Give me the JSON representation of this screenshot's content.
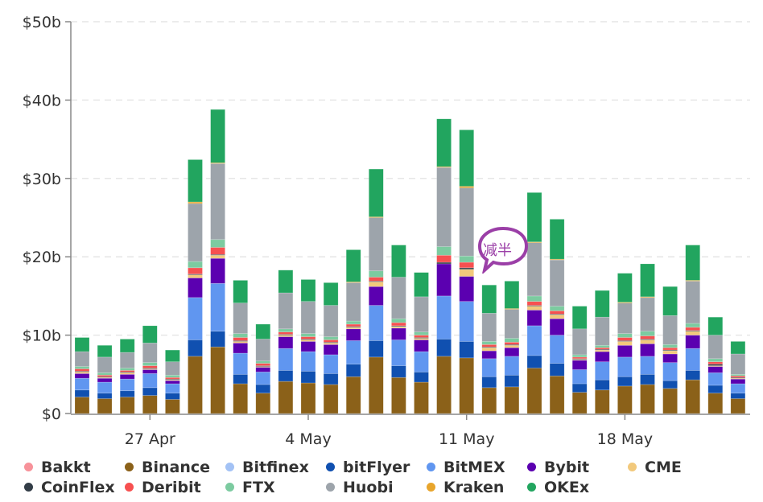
{
  "chart_data": {
    "type": "bar",
    "stacked": true,
    "title": "",
    "xlabel": "",
    "ylabel": "",
    "ylim": [
      0,
      50
    ],
    "yticks": [
      "$0",
      "$10b",
      "$20b",
      "$30b",
      "$40b",
      "$50b"
    ],
    "ytick_values": [
      0,
      10,
      20,
      30,
      40,
      50
    ],
    "xtick_labels": [
      "27 Apr",
      "4 May",
      "11 May",
      "18 May"
    ],
    "xtick_indices": [
      3,
      10,
      17,
      24
    ],
    "grid": true,
    "legend_position": "bottom",
    "categories": [
      "24 Apr",
      "25 Apr",
      "26 Apr",
      "27 Apr",
      "28 Apr",
      "29 Apr",
      "30 Apr",
      "1 May",
      "2 May",
      "3 May",
      "4 May",
      "5 May",
      "6 May",
      "7 May",
      "8 May",
      "9 May",
      "10 May",
      "11 May",
      "12 May",
      "13 May",
      "14 May",
      "15 May",
      "16 May",
      "17 May",
      "18 May",
      "19 May",
      "20 May",
      "21 May",
      "22 May",
      "23 May"
    ],
    "series": [
      {
        "name": "Binance",
        "color": "#8b6119",
        "values": [
          2.1,
          1.9,
          2.1,
          2.3,
          1.8,
          7.3,
          8.5,
          3.8,
          2.6,
          4.1,
          3.9,
          3.7,
          4.7,
          7.2,
          4.6,
          4.0,
          7.3,
          7.1,
          3.3,
          3.4,
          5.8,
          4.8,
          2.7,
          3.0,
          3.5,
          3.7,
          3.2,
          4.3,
          2.6,
          1.9
        ]
      },
      {
        "name": "bitFlyer",
        "color": "#1050b0",
        "values": [
          0.9,
          0.7,
          0.8,
          1.0,
          0.8,
          2.1,
          2.0,
          1.2,
          1.1,
          1.4,
          1.5,
          1.4,
          1.6,
          2.1,
          1.5,
          1.3,
          2.2,
          2.1,
          1.4,
          1.5,
          1.6,
          1.6,
          1.1,
          1.3,
          1.2,
          1.3,
          1.0,
          1.2,
          1.0,
          0.7
        ]
      },
      {
        "name": "BitMEX",
        "color": "#6096f0",
        "values": [
          1.5,
          1.4,
          1.5,
          1.8,
          1.2,
          5.4,
          6.1,
          2.7,
          1.6,
          2.8,
          2.5,
          2.4,
          3.0,
          4.5,
          3.3,
          2.6,
          5.5,
          5.1,
          2.3,
          2.4,
          3.8,
          3.6,
          1.8,
          2.3,
          2.5,
          2.3,
          2.3,
          2.8,
          1.6,
          1.2
        ]
      },
      {
        "name": "Bybit",
        "color": "#5b00b0",
        "values": [
          0.6,
          0.5,
          0.6,
          0.5,
          0.4,
          2.5,
          3.2,
          1.3,
          0.6,
          1.5,
          1.3,
          1.3,
          1.5,
          2.4,
          1.5,
          1.5,
          4.1,
          3.2,
          1.0,
          1.1,
          2.0,
          2.1,
          1.2,
          1.3,
          1.5,
          1.6,
          1.1,
          1.7,
          0.8,
          0.6
        ]
      },
      {
        "name": "CME",
        "color": "#f2c97c",
        "values": [
          0.2,
          0.1,
          0.2,
          0.1,
          0.1,
          0.4,
          0.4,
          0.2,
          0.1,
          0.2,
          0.2,
          0.2,
          0.2,
          0.6,
          0.2,
          0.2,
          0.0,
          0.9,
          0.4,
          0.3,
          0.5,
          0.5,
          0.1,
          0.2,
          0.5,
          0.5,
          0.4,
          0.5,
          0.1,
          0.1
        ]
      },
      {
        "name": "CoinFlex",
        "color": "#333d47",
        "values": [
          0.1,
          0.1,
          0.1,
          0.1,
          0.1,
          0.1,
          0.1,
          0.1,
          0.1,
          0.1,
          0.1,
          0.1,
          0.1,
          0.1,
          0.1,
          0.1,
          0.2,
          0.2,
          0.1,
          0.1,
          0.1,
          0.1,
          0.1,
          0.1,
          0.1,
          0.1,
          0.1,
          0.1,
          0.2,
          0.1
        ]
      },
      {
        "name": "Deribit",
        "color": "#f75050",
        "values": [
          0.3,
          0.2,
          0.2,
          0.3,
          0.2,
          0.8,
          0.9,
          0.4,
          0.3,
          0.3,
          0.3,
          0.3,
          0.3,
          0.5,
          0.4,
          0.3,
          0.9,
          0.7,
          0.3,
          0.3,
          0.5,
          0.4,
          0.2,
          0.2,
          0.4,
          0.4,
          0.3,
          0.4,
          0.3,
          0.2
        ]
      },
      {
        "name": "FTX",
        "color": "#7ccba0",
        "values": [
          0.3,
          0.3,
          0.3,
          0.4,
          0.3,
          0.8,
          1.0,
          0.5,
          0.3,
          0.4,
          0.4,
          0.4,
          0.4,
          0.8,
          0.5,
          0.4,
          1.1,
          0.8,
          0.4,
          0.5,
          0.7,
          0.6,
          0.3,
          0.3,
          0.5,
          0.6,
          0.4,
          0.5,
          0.4,
          0.2
        ]
      },
      {
        "name": "Huobi",
        "color": "#9da4ab",
        "values": [
          1.9,
          2.0,
          2.0,
          2.5,
          1.7,
          7.4,
          9.7,
          3.9,
          2.8,
          4.6,
          4.1,
          4.0,
          4.9,
          6.8,
          5.3,
          4.5,
          10.1,
          8.7,
          3.6,
          3.7,
          6.8,
          5.9,
          3.3,
          3.6,
          3.9,
          4.3,
          3.7,
          5.4,
          3.0,
          2.6
        ]
      },
      {
        "name": "Kraken",
        "color": "#e8a52c",
        "values": [
          0.0,
          0.0,
          0.0,
          0.0,
          0.0,
          0.2,
          0.1,
          0.0,
          0.0,
          0.0,
          0.0,
          0.0,
          0.1,
          0.1,
          0.0,
          0.0,
          0.1,
          0.2,
          0.0,
          0.1,
          0.1,
          0.1,
          0.0,
          0.0,
          0.1,
          0.1,
          0.0,
          0.1,
          0.0,
          0.0
        ]
      },
      {
        "name": "OKEx",
        "color": "#22a55f",
        "values": [
          1.8,
          1.5,
          1.7,
          2.2,
          1.5,
          5.4,
          6.8,
          2.9,
          1.9,
          2.9,
          2.8,
          2.9,
          4.1,
          6.1,
          4.1,
          3.1,
          6.1,
          7.2,
          3.6,
          3.5,
          6.3,
          5.1,
          2.9,
          3.4,
          3.7,
          4.2,
          3.7,
          4.5,
          2.3,
          1.6
        ]
      }
    ],
    "legend": [
      {
        "name": "Bakkt",
        "color": "#f7929a"
      },
      {
        "name": "Binance",
        "color": "#8b6119"
      },
      {
        "name": "Bitfinex",
        "color": "#a3c2f5"
      },
      {
        "name": "bitFlyer",
        "color": "#1050b0"
      },
      {
        "name": "BitMEX",
        "color": "#6096f0"
      },
      {
        "name": "Bybit",
        "color": "#5b00b0"
      },
      {
        "name": "CME",
        "color": "#f2c97c"
      },
      {
        "name": "CoinFlex",
        "color": "#333d47"
      },
      {
        "name": "Deribit",
        "color": "#f75050"
      },
      {
        "name": "FTX",
        "color": "#7ccba0"
      },
      {
        "name": "Huobi",
        "color": "#9da4ab"
      },
      {
        "name": "Kraken",
        "color": "#e8a52c"
      },
      {
        "name": "OKEx",
        "color": "#22a55f"
      }
    ],
    "annotations": [
      {
        "text": "减半",
        "category": "12 May",
        "color": "#9b3fa7"
      }
    ]
  }
}
